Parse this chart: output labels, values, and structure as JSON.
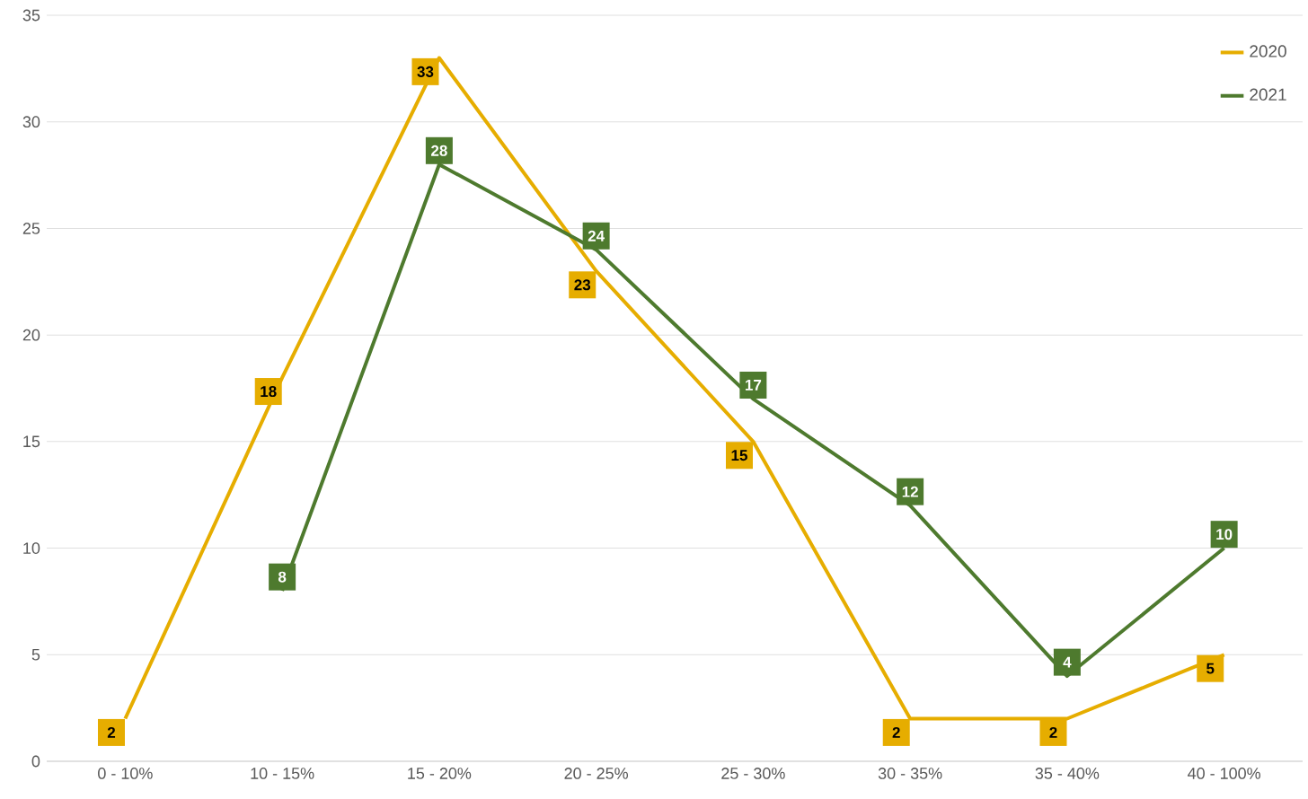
{
  "chart_data": {
    "type": "line",
    "categories": [
      "0 - 10%",
      "10 - 15%",
      "15 - 20%",
      "20 - 25%",
      "25 - 30%",
      "30 - 35%",
      "35 - 40%",
      "40 - 100%"
    ],
    "series": [
      {
        "name": "2020",
        "color": "#e6ad00",
        "values": [
          2,
          18,
          33,
          23,
          15,
          2,
          2,
          5
        ]
      },
      {
        "name": "2021",
        "color": "#4e7a2e",
        "values": [
          null,
          8,
          28,
          24,
          17,
          12,
          4,
          10
        ]
      }
    ],
    "ylim": [
      0,
      35
    ],
    "yticks": [
      0,
      5,
      10,
      15,
      20,
      25,
      30,
      35
    ],
    "grid": "y",
    "legend": "top right",
    "marker": "none",
    "line_style": "solid",
    "data_labels": true
  }
}
